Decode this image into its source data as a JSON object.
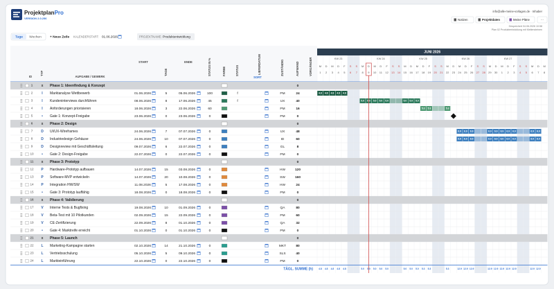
{
  "header": {
    "brand": "Projektplan",
    "brand_accent": "Pro",
    "version": "VERSION 2.0.256",
    "account": "info@alle-meine-vorlagen.de · Inhaber",
    "buttons": [
      "Notizen",
      "Projektdaten",
      "Meine Pläne",
      "···"
    ],
    "saved": "Gespeichert 04.06.2026 10:58",
    "plan": "Plan 02 Produktentwicklung mit Meilensteinen"
  },
  "toolbar": {
    "views": [
      "Tage",
      "Wochen"
    ],
    "new_row": "+ Neue Zeile",
    "calendar_start_label": "KALENDERSTART:",
    "calendar_start": "01.06.2026",
    "project_label": "PROJEKTNAME:",
    "project": "Produktentwicklung"
  },
  "table": {
    "columns": [
      "ID",
      "TYP",
      "AUFGABE / GEWERK",
      "START",
      "TAGE",
      "ENDE",
      "STATUS IN %",
      "FARBE",
      "STATUS",
      "LIEFERDATUM",
      "SORT",
      "ZUSTÄNDIG",
      "AUFWAND",
      "VORGÄNGER"
    ],
    "rows": [
      {
        "id": 1,
        "type": "x",
        "name": "Phase 1: Ideenfindung & Konzept",
        "phase": true,
        "aufwand": 0
      },
      {
        "id": 2,
        "type": "I",
        "name": "Marktanalyse Wettbewerb",
        "start": "01.06.2026",
        "tage": 5,
        "ende": "05.06.2026",
        "pct": 100,
        "color": "#1e5e46",
        "status": "f",
        "owner": "PM",
        "aufwand": 24,
        "per_day": "4.8"
      },
      {
        "id": 3,
        "type": "I",
        "name": "Kundeninterviews durchführen",
        "start": "08.06.2026",
        "tage": 8,
        "ende": "17.06.2026",
        "pct": 45,
        "color": "#2d7a5c",
        "status": "f",
        "owner": "UX",
        "aufwand": 40,
        "per_day": "5.0"
      },
      {
        "id": 4,
        "type": "I",
        "name": "Anforderungen priorisieren",
        "start": "18.06.2026",
        "tage": 3,
        "ende": "22.06.2026",
        "pct": 60,
        "color": "#4f9a74",
        "owner": "PM",
        "aufwand": 16,
        "per_day": "5.3"
      },
      {
        "id": 5,
        "type": "•",
        "name": "Gate 1: Konzept-Freigabe",
        "start": "23.06.2026",
        "tage": 0,
        "ende": "23.06.2026",
        "pct": 0,
        "color": "#111111",
        "owner": "PM",
        "aufwand": 0,
        "milestone": true
      },
      {
        "id": 6,
        "type": "x",
        "name": "Phase 2: Design",
        "phase": true,
        "aufwand": 0
      },
      {
        "id": 7,
        "type": "D",
        "name": "UI/UX-Wireframes",
        "start": "24.06.2026",
        "tage": 7,
        "ende": "07.07.2026",
        "pct": 0,
        "color": "#3d7fbf",
        "owner": "UX",
        "aufwand": 48,
        "per_day": "6.9"
      },
      {
        "id": 8,
        "type": "D",
        "name": "Industriedesign Gehäuse",
        "start": "24.06.2026",
        "tage": 10,
        "ende": "07.07.2026",
        "pct": 0,
        "color": "#3d7fbf",
        "owner": "ID",
        "aufwand": 60,
        "per_day": "6.0"
      },
      {
        "id": 9,
        "type": "D",
        "name": "Designreview mit Geschäftsleitung",
        "start": "09.07.2026",
        "tage": 6,
        "ende": "22.07.2026",
        "pct": 0,
        "color": "#3d7fbf",
        "owner": "GL",
        "aufwand": 8
      },
      {
        "id": 10,
        "type": "•",
        "name": "Gate 2: Design-Freigabe",
        "start": "22.07.2026",
        "tage": 0,
        "ende": "22.07.2026",
        "pct": 0,
        "color": "#111111",
        "owner": "PM",
        "aufwand": 0,
        "milestone": true
      },
      {
        "id": 11,
        "type": "x",
        "name": "Phase 3: Prototyp",
        "phase": true,
        "aufwand": 0
      },
      {
        "id": 12,
        "type": "P",
        "name": "Hardware-Prototyp aufbauen",
        "start": "14.07.2026",
        "tage": 15,
        "ende": "03.08.2026",
        "pct": 0,
        "color": "#e08a3c",
        "owner": "HW",
        "aufwand": 120
      },
      {
        "id": 13,
        "type": "P",
        "name": "Software-MVP entwickeln",
        "start": "14.07.2026",
        "tage": 20,
        "ende": "10.08.2026",
        "pct": 0,
        "color": "#e08a3c",
        "owner": "SW",
        "aufwand": 160
      },
      {
        "id": 14,
        "type": "P",
        "name": "Integration HW/SW",
        "start": "11.08.2026",
        "tage": 5,
        "ende": "17.08.2026",
        "pct": 0,
        "color": "#e08a3c",
        "owner": "HW",
        "aufwand": 24
      },
      {
        "id": 15,
        "type": "•",
        "name": "Gate 3: Prototyp lauffähig",
        "start": "18.08.2026",
        "tage": 0,
        "ende": "18.08.2026",
        "pct": 0,
        "color": "#111111",
        "owner": "PM",
        "aufwand": 0,
        "milestone": true
      },
      {
        "id": 16,
        "type": "x",
        "name": "Phase 4: Validierung",
        "phase": true,
        "aufwand": 0
      },
      {
        "id": 17,
        "type": "V",
        "name": "Interne Tests & Bugfixing",
        "start": "19.08.2026",
        "tage": 10,
        "ende": "01.09.2026",
        "pct": 0,
        "color": "#7b4fa8",
        "owner": "QA",
        "aufwand": 80
      },
      {
        "id": 18,
        "type": "V",
        "name": "Beta-Test mit 10 Pilotkunden",
        "start": "02.09.2026",
        "tage": 15,
        "ende": "22.09.2026",
        "pct": 0,
        "color": "#7b4fa8",
        "owner": "PM",
        "aufwand": 60
      },
      {
        "id": 19,
        "type": "V",
        "name": "CE-Zertifizierung",
        "start": "22.09.2026",
        "tage": 8,
        "ende": "01.10.2026",
        "pct": 0,
        "color": "#7b4fa8",
        "owner": "QA",
        "aufwand": 32
      },
      {
        "id": 20,
        "type": "•",
        "name": "Gate 4: Marktreife erreicht",
        "start": "01.10.2026",
        "tage": 0,
        "ende": "01.10.2026",
        "pct": 0,
        "color": "#111111",
        "owner": "PM",
        "aufwand": 0,
        "milestone": true
      },
      {
        "id": 21,
        "type": "x",
        "name": "Phase 5: Launch",
        "phase": true,
        "aufwand": 0
      },
      {
        "id": 22,
        "type": "L",
        "name": "Marketing-Kampagne starten",
        "start": "02.10.2026",
        "tage": 14,
        "ende": "21.10.2026",
        "pct": 0,
        "color": "#2a9d8f",
        "owner": "MKT",
        "aufwand": 80
      },
      {
        "id": 23,
        "type": "L",
        "name": "Vertriebsschulung",
        "start": "05.10.2026",
        "tage": 5,
        "ende": "09.10.2026",
        "pct": 0,
        "color": "#2a9d8f",
        "owner": "SLS",
        "aufwand": 40
      },
      {
        "id": 24,
        "type": "L",
        "name": "Markteinführung",
        "start": "22.10.2026",
        "tage": 0,
        "ende": "22.10.2026",
        "pct": 0,
        "color": "#111111",
        "owner": "PM",
        "aufwand": 0,
        "milestone": true
      }
    ],
    "sum_label": "TÄGL. SUMME (h)"
  },
  "gantt": {
    "month": "JUNI 2026",
    "weeks": [
      "KW 23",
      "KW 24",
      "KW 25",
      "KW 26",
      "KW 27"
    ],
    "today": "09.06.2026",
    "days": [
      {
        "d": "M",
        "n": 1
      },
      {
        "d": "D",
        "n": 2
      },
      {
        "d": "M",
        "n": 3
      },
      {
        "d": "D",
        "n": 4
      },
      {
        "d": "F",
        "n": 5
      },
      {
        "d": "S",
        "n": 6
      },
      {
        "d": "S",
        "n": 7
      },
      {
        "d": "M",
        "n": 8
      },
      {
        "d": "D",
        "n": 9
      },
      {
        "d": "M",
        "n": 10
      },
      {
        "d": "D",
        "n": 11
      },
      {
        "d": "F",
        "n": 12
      },
      {
        "d": "S",
        "n": 13
      },
      {
        "d": "S",
        "n": 14
      },
      {
        "d": "M",
        "n": 15
      },
      {
        "d": "D",
        "n": 16
      },
      {
        "d": "M",
        "n": 17
      },
      {
        "d": "D",
        "n": 18
      },
      {
        "d": "F",
        "n": 19
      },
      {
        "d": "S",
        "n": 20
      },
      {
        "d": "S",
        "n": 21
      },
      {
        "d": "M",
        "n": 22
      },
      {
        "d": "D",
        "n": 23
      },
      {
        "d": "M",
        "n": 24
      },
      {
        "d": "D",
        "n": 25
      },
      {
        "d": "F",
        "n": 26
      },
      {
        "d": "S",
        "n": 27
      },
      {
        "d": "S",
        "n": 28
      },
      {
        "d": "M",
        "n": 29
      },
      {
        "d": "D",
        "n": 30
      },
      {
        "d": "M",
        "n": 1
      },
      {
        "d": "D",
        "n": 2
      },
      {
        "d": "F",
        "n": 3
      },
      {
        "d": "S",
        "n": 4
      },
      {
        "d": "S",
        "n": 5
      },
      {
        "d": "M",
        "n": 6
      },
      {
        "d": "D",
        "n": 7
      },
      {
        "d": "M",
        "n": 8
      }
    ],
    "daily_sum": [
      "4.8",
      "4.8",
      "4.8",
      "4.8",
      "4.8",
      null,
      null,
      "5.0",
      "5.0",
      "5.0",
      "5.0",
      "5.0",
      null,
      null,
      "5.0",
      "5.0",
      "5.0",
      "5.3",
      "5.3",
      null,
      null,
      "5.3",
      null,
      "12.9",
      "12.9",
      "12.9",
      null,
      null,
      "12.9",
      "12.9",
      "12.9",
      "12.9",
      "12.9",
      null,
      null,
      "12.9",
      "12.9",
      null
    ]
  }
}
